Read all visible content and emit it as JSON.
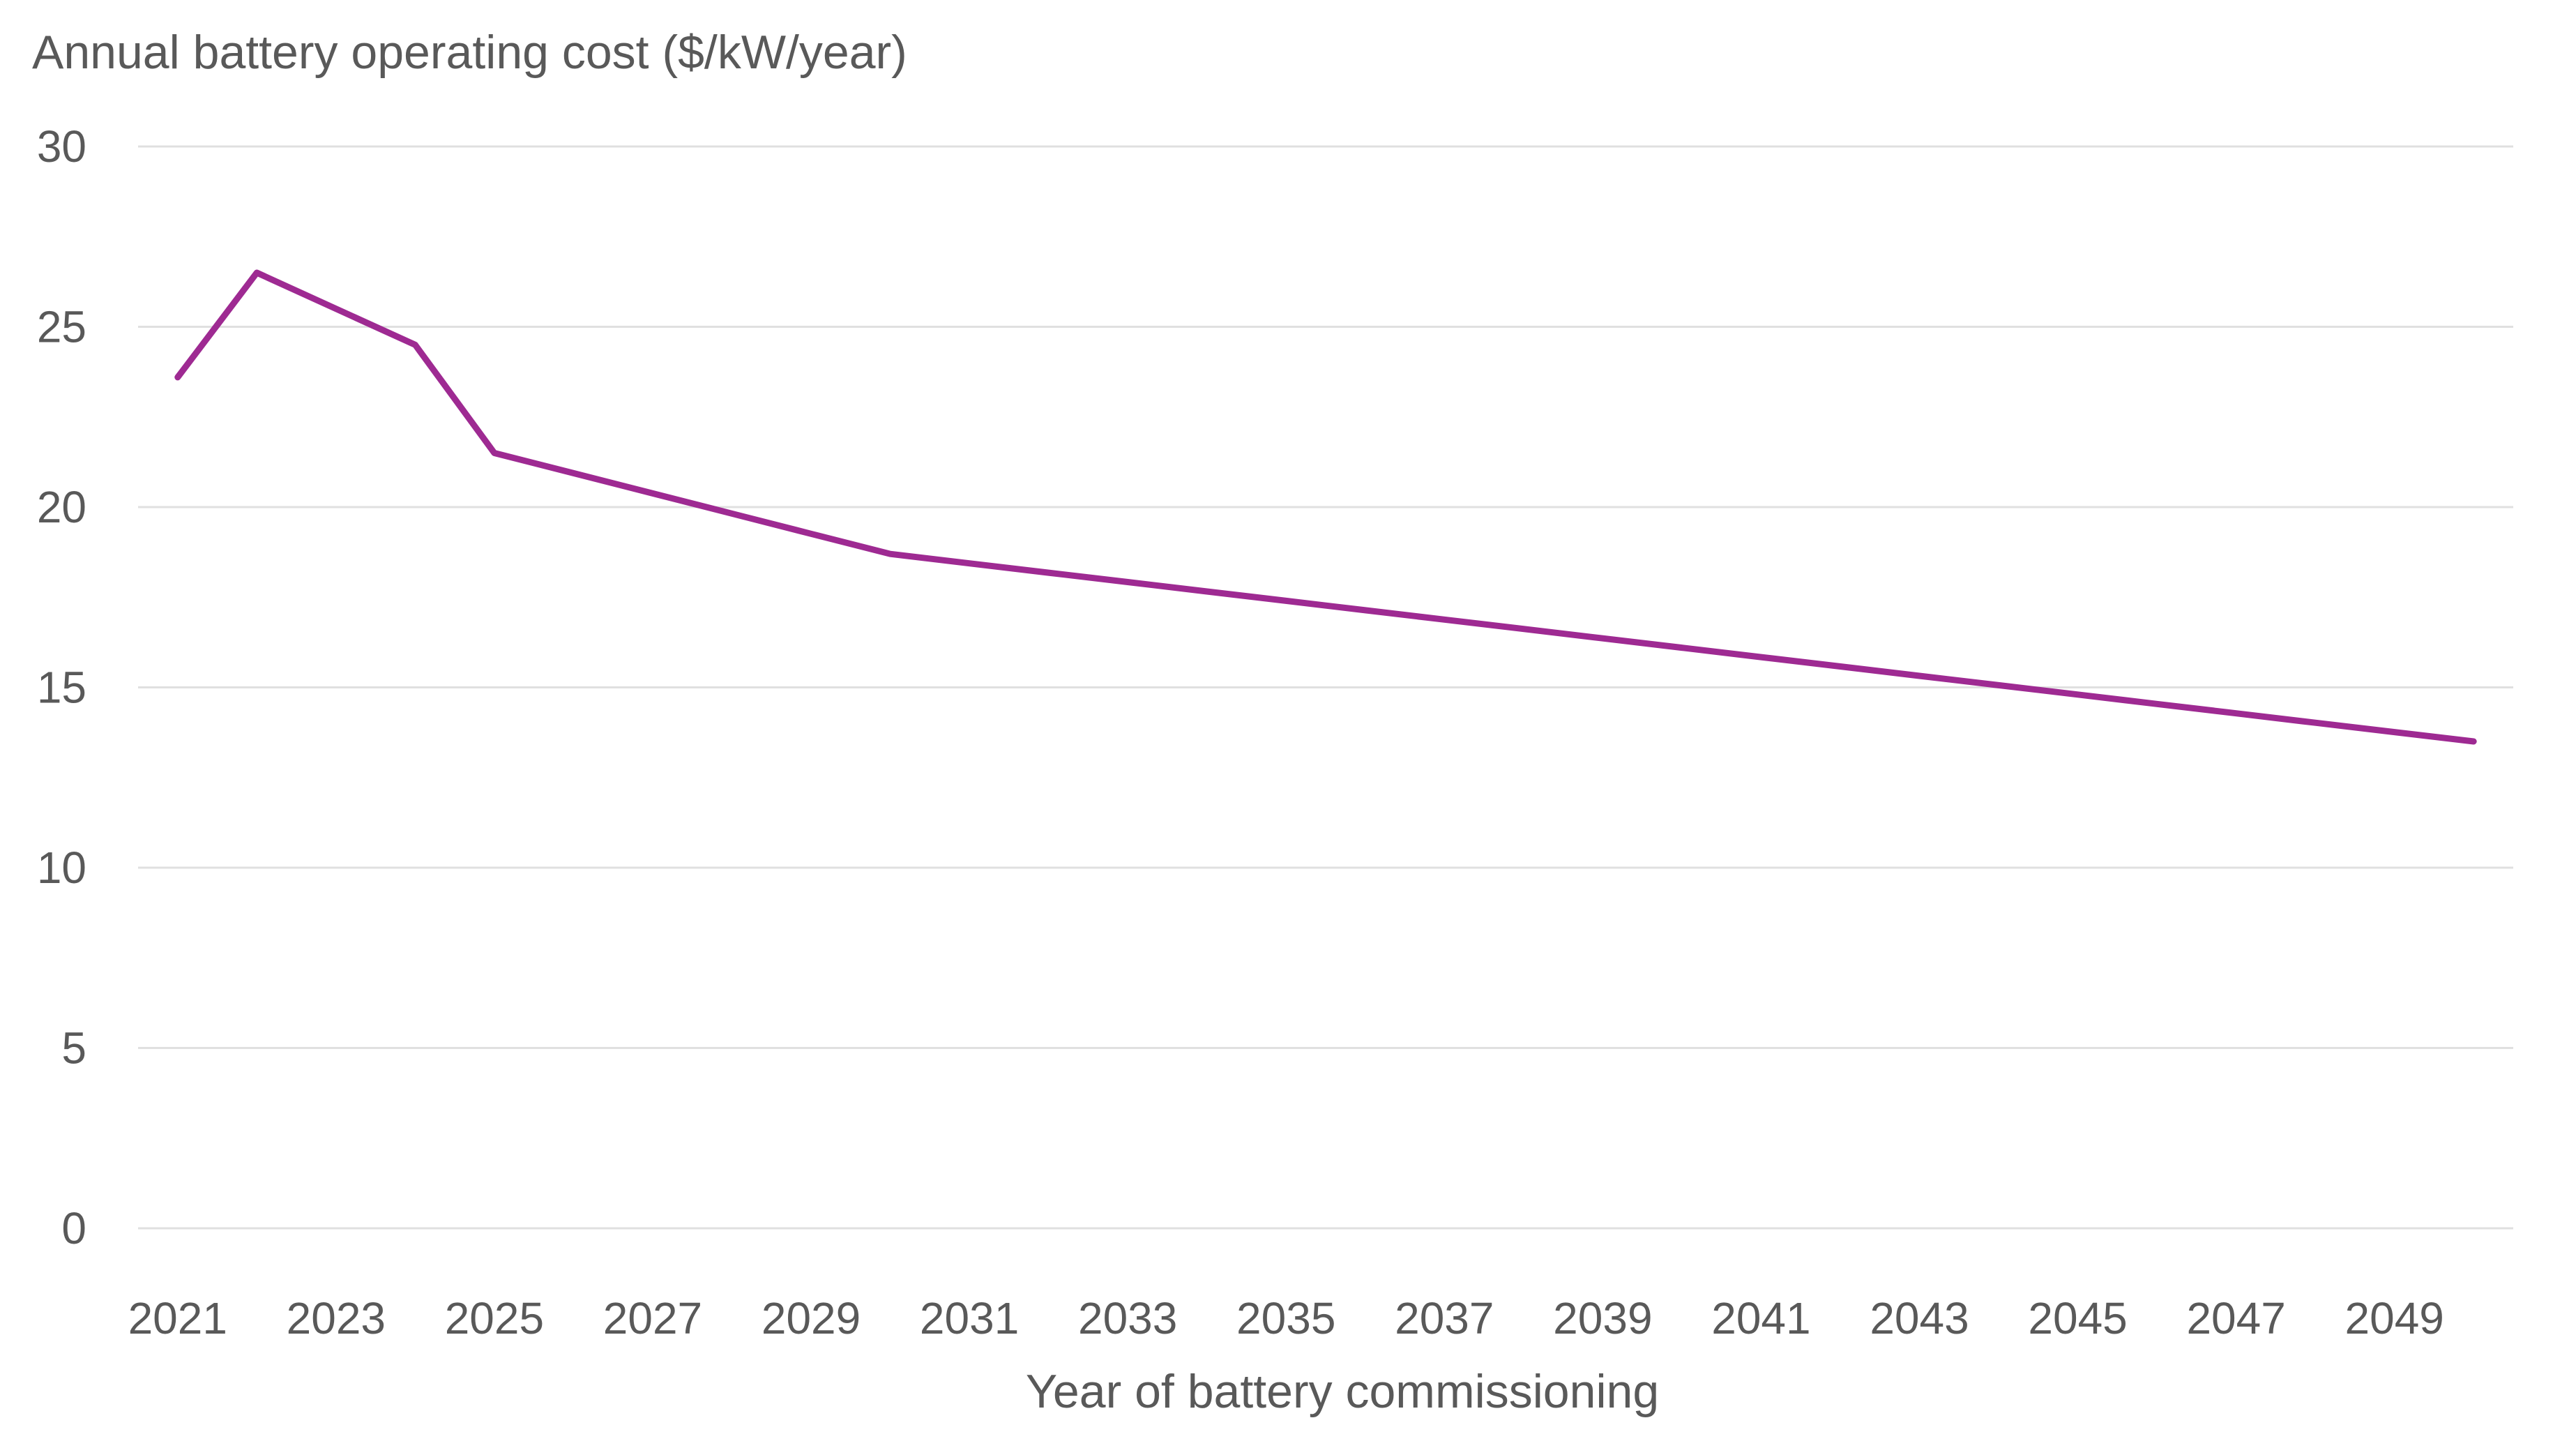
{
  "chart_data": {
    "type": "line",
    "title": "",
    "ylabel": "Annual battery operating cost ($/kW/year)",
    "xlabel": "Year of battery commissioning",
    "ylim": [
      0,
      30
    ],
    "yticks": [
      0,
      5,
      10,
      15,
      20,
      25,
      30
    ],
    "ytick_labels": [
      "0",
      "5",
      "10",
      "15",
      "20",
      "25",
      "30"
    ],
    "grid": true,
    "legend": "none",
    "x": [
      2021,
      2022,
      2023,
      2024,
      2025,
      2026,
      2027,
      2028,
      2029,
      2030,
      2031,
      2032,
      2033,
      2034,
      2035,
      2036,
      2037,
      2038,
      2039,
      2040,
      2041,
      2042,
      2043,
      2044,
      2045,
      2046,
      2047,
      2048,
      2049,
      2050
    ],
    "xtick_labels": [
      "2021",
      "2023",
      "2025",
      "2027",
      "2029",
      "2031",
      "2033",
      "2035",
      "2037",
      "2039",
      "2041",
      "2043",
      "2045",
      "2047",
      "2049"
    ],
    "series": [
      {
        "name": "Annual battery operating cost",
        "color": "#9e2a92",
        "values": [
          23.6,
          26.5,
          25.5,
          24.5,
          21.5,
          20.94,
          20.38,
          19.82,
          19.26,
          18.7,
          18.44,
          18.18,
          17.92,
          17.66,
          17.4,
          17.14,
          16.88,
          16.62,
          16.36,
          16.1,
          15.84,
          15.58,
          15.32,
          15.06,
          14.8,
          14.54,
          14.28,
          14.02,
          13.76,
          13.5
        ]
      }
    ]
  }
}
